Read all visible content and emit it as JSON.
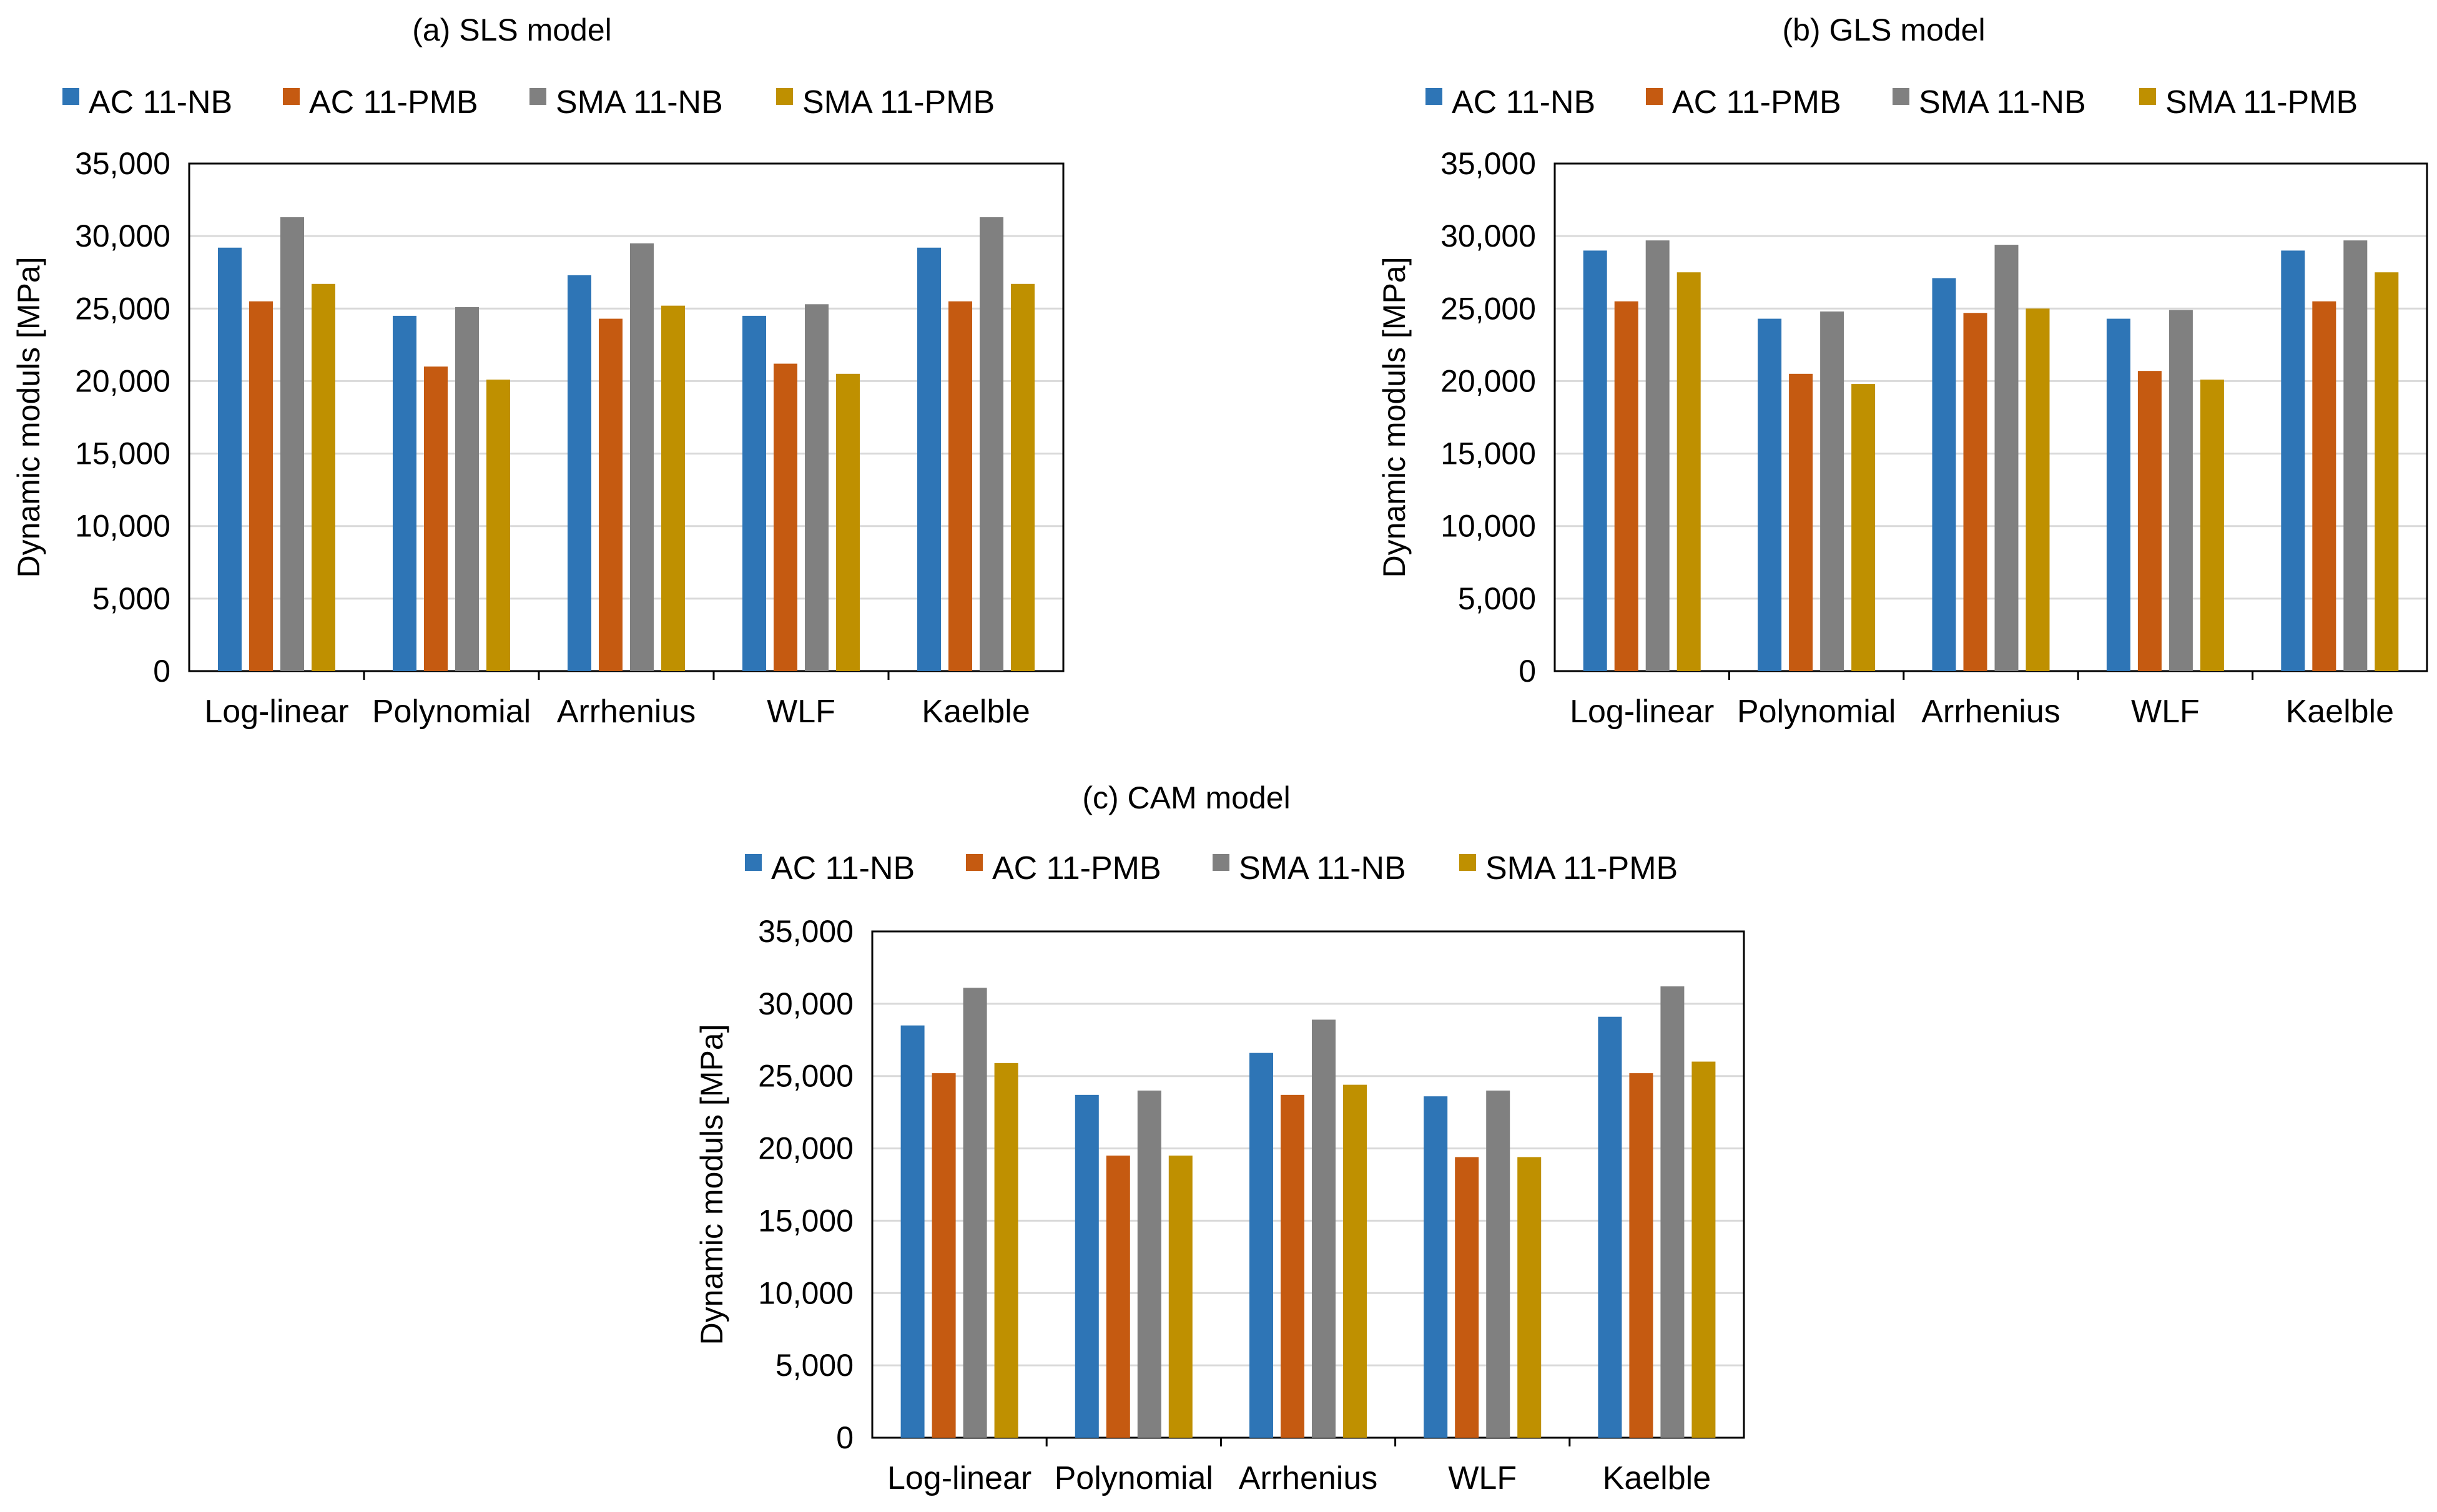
{
  "chart_data": [
    {
      "type": "bar",
      "title": "(a) SLS model",
      "xlabel": "",
      "ylabel": "Dynamic moduls [MPa]",
      "ylim": [
        0,
        35000
      ],
      "yticks": [
        "0",
        "5,000",
        "10,000",
        "15,000",
        "20,000",
        "25,000",
        "30,000",
        "35,000"
      ],
      "grid": true,
      "legend_position": "top",
      "categories": [
        "Log-linear",
        "Polynomial",
        "Arrhenius",
        "WLF",
        "Kaelble"
      ],
      "series": [
        {
          "name": "AC 11-NB",
          "values": [
            29200,
            24500,
            27300,
            24500,
            29200
          ]
        },
        {
          "name": "AC 11-PMB",
          "values": [
            25500,
            21000,
            24300,
            21200,
            25500
          ]
        },
        {
          "name": "SMA 11-NB",
          "values": [
            31300,
            25100,
            29500,
            25300,
            31300
          ]
        },
        {
          "name": "SMA 11-PMB",
          "values": [
            26700,
            20100,
            25200,
            20500,
            26700
          ]
        }
      ]
    },
    {
      "type": "bar",
      "title": "(b) GLS model",
      "xlabel": "",
      "ylabel": "Dynamic moduls [MPa]",
      "ylim": [
        0,
        35000
      ],
      "yticks": [
        "0",
        "5,000",
        "10,000",
        "15,000",
        "20,000",
        "25,000",
        "30,000",
        "35,000"
      ],
      "grid": true,
      "legend_position": "top",
      "categories": [
        "Log-linear",
        "Polynomial",
        "Arrhenius",
        "WLF",
        "Kaelble"
      ],
      "series": [
        {
          "name": "AC 11-NB",
          "values": [
            29000,
            24300,
            27100,
            24300,
            29000
          ]
        },
        {
          "name": "AC 11-PMB",
          "values": [
            25500,
            20500,
            24700,
            20700,
            25500
          ]
        },
        {
          "name": "SMA 11-NB",
          "values": [
            29700,
            24800,
            29400,
            24900,
            29700
          ]
        },
        {
          "name": "SMA 11-PMB",
          "values": [
            27500,
            19800,
            25000,
            20100,
            27500
          ]
        }
      ]
    },
    {
      "type": "bar",
      "title": "(c) CAM model",
      "xlabel": "",
      "ylabel": "Dynamic moduls [MPa]",
      "ylim": [
        0,
        35000
      ],
      "yticks": [
        "0",
        "5,000",
        "10,000",
        "15,000",
        "20,000",
        "25,000",
        "30,000",
        "35,000"
      ],
      "grid": true,
      "legend_position": "top",
      "categories": [
        "Log-linear",
        "Polynomial",
        "Arrhenius",
        "WLF",
        "Kaelble"
      ],
      "series": [
        {
          "name": "AC 11-NB",
          "values": [
            28500,
            23700,
            26600,
            23600,
            29100
          ]
        },
        {
          "name": "AC 11-PMB",
          "values": [
            25200,
            19500,
            23700,
            19400,
            25200
          ]
        },
        {
          "name": "SMA 11-NB",
          "values": [
            31100,
            24000,
            28900,
            24000,
            31200
          ]
        },
        {
          "name": "SMA 11-PMB",
          "values": [
            25900,
            19500,
            24400,
            19400,
            26000
          ]
        }
      ]
    }
  ],
  "colors": {
    "series": [
      "#2e75b6",
      "#c55a11",
      "#808080",
      "#bf9000"
    ],
    "grid": "#d9d9d9",
    "axis": "#000000",
    "plot_border": "#000000"
  }
}
